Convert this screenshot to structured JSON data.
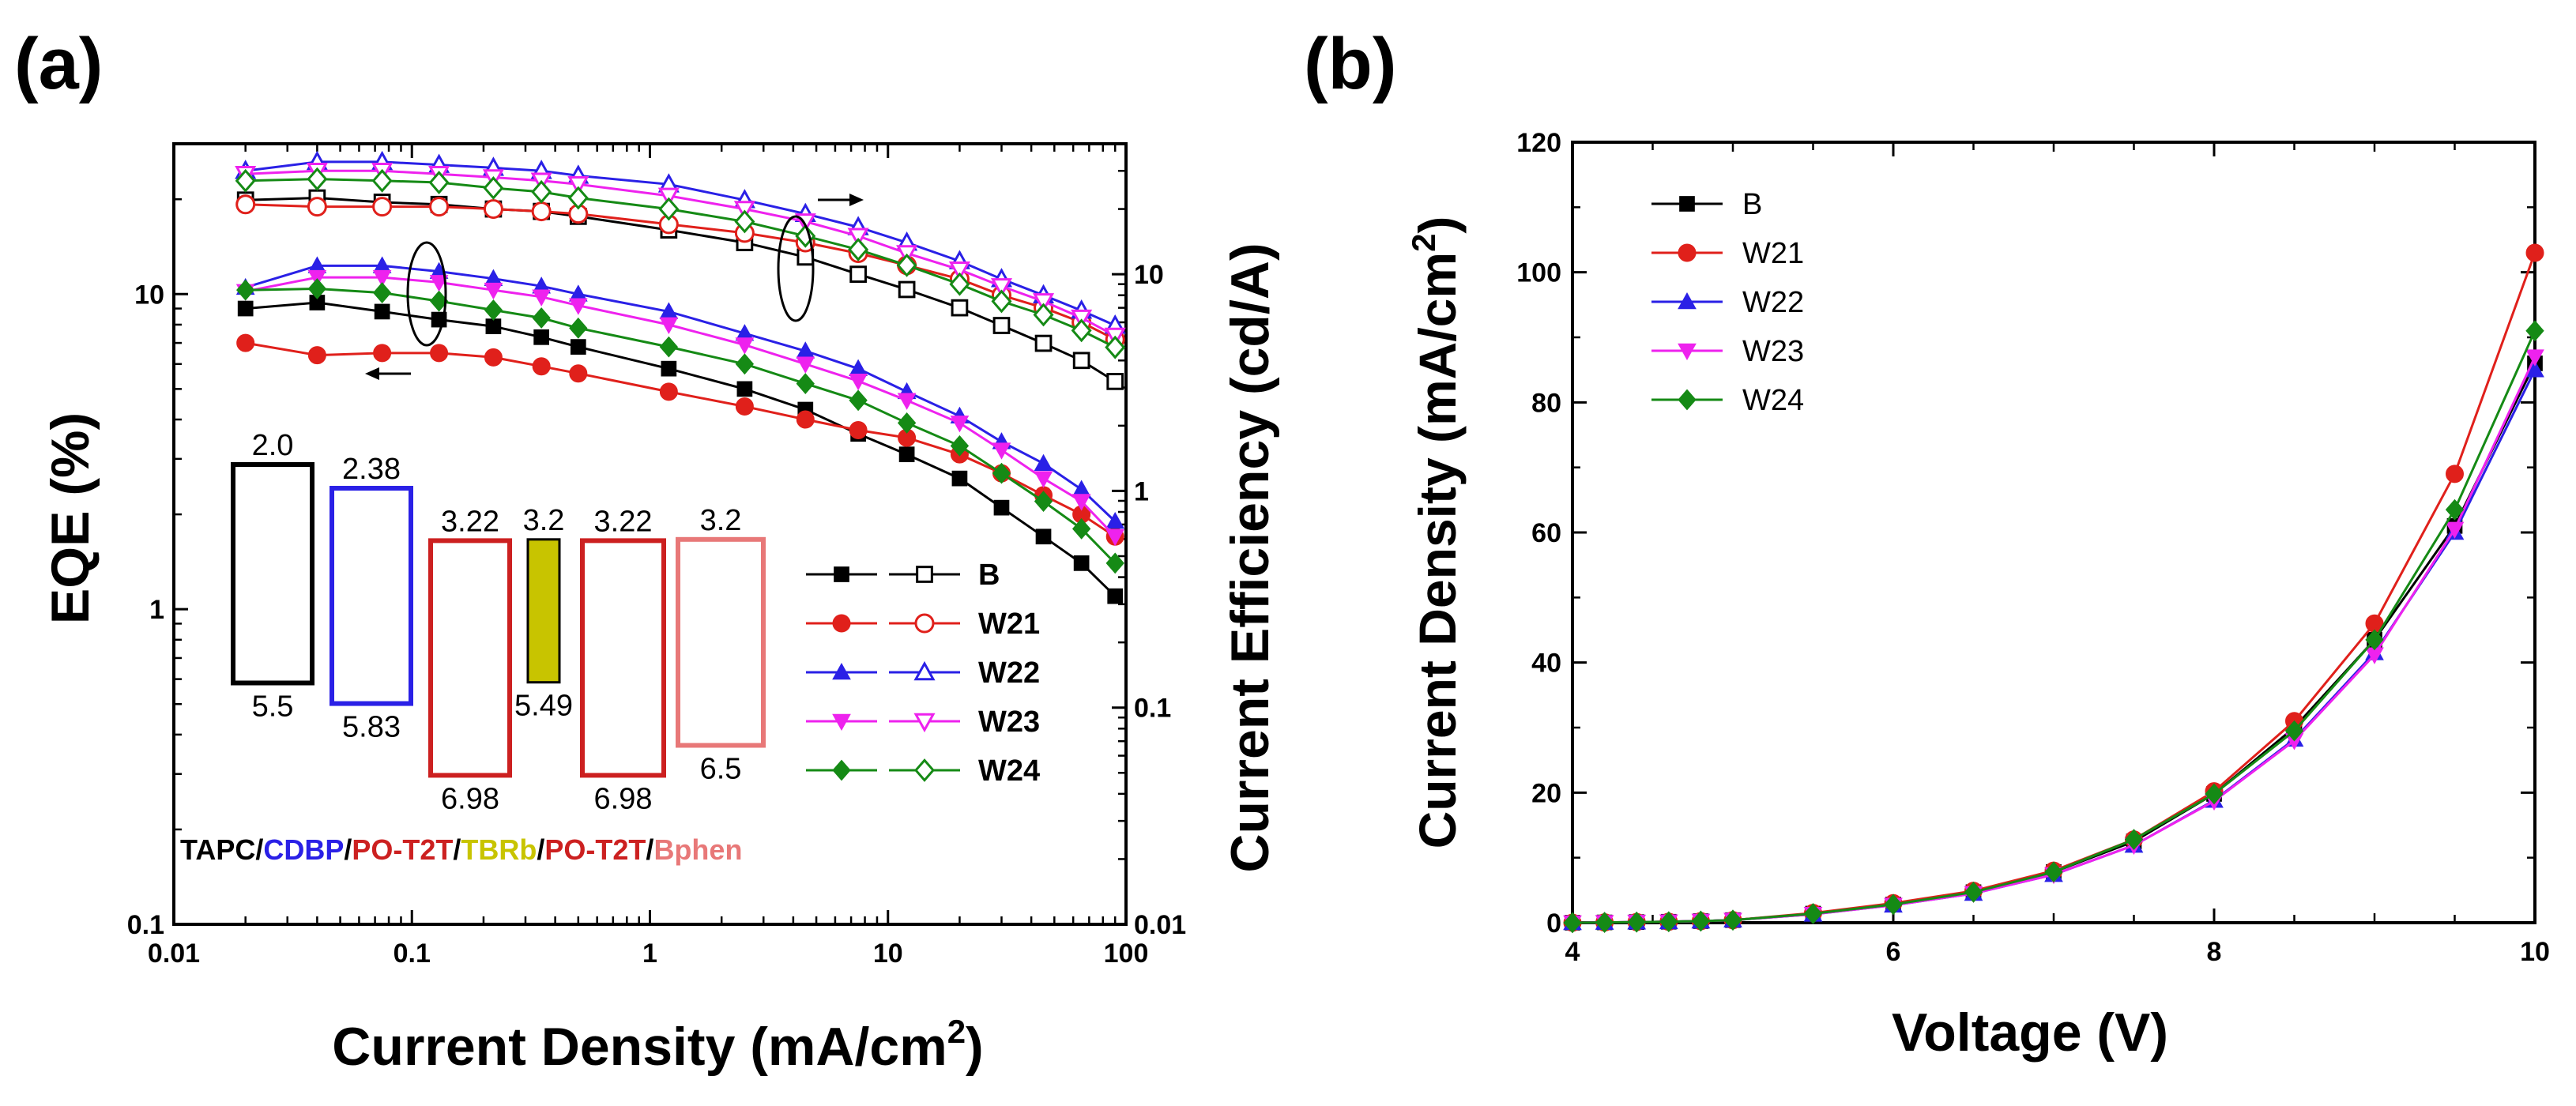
{
  "chart_data": [
    {
      "panel_label": "(a)",
      "type": "line",
      "x_scale": "log",
      "y_scale": "log",
      "xlabel_main": "Current Density (mA/cm",
      "xlabel_sup": "2",
      "xlabel_end": ")",
      "ylabel_left": "EQE (%)",
      "ylabel_right": "Current Efficiency (cd/A)",
      "xlim": [
        0.01,
        100
      ],
      "ylim_left": [
        0.1,
        30
      ],
      "ylim_right": [
        0.01,
        40
      ],
      "x_ticks": [
        0.01,
        0.1,
        1,
        10,
        100
      ],
      "x_tick_labels": [
        "0.01",
        "0.1",
        "1",
        "10",
        "100"
      ],
      "y_left_ticks": [
        0.1,
        1,
        10
      ],
      "y_left_tick_labels": [
        "0.1",
        "1",
        "10"
      ],
      "y_right_ticks": [
        0.01,
        0.1,
        1,
        10
      ],
      "y_right_tick_labels": [
        "0.01",
        "0.1",
        "1",
        "10"
      ],
      "x": [
        0.02,
        0.04,
        0.075,
        0.13,
        0.22,
        0.35,
        0.5,
        1.2,
        2.5,
        4.5,
        7.5,
        12,
        20,
        30,
        45,
        65,
        90
      ],
      "series": [
        {
          "name": "B",
          "color": "#000000",
          "eqe": [
            9.0,
            9.4,
            8.8,
            8.3,
            7.9,
            7.3,
            6.8,
            5.8,
            5.0,
            4.3,
            3.6,
            3.1,
            2.6,
            2.1,
            1.7,
            1.4,
            1.1
          ],
          "ce": [
            22,
            22.5,
            21.5,
            21,
            20,
            19.5,
            18.5,
            16,
            14,
            12,
            10,
            8.5,
            7,
            5.8,
            4.8,
            4,
            3.2
          ]
        },
        {
          "name": "W21",
          "color": "#e0201b",
          "eqe": [
            7.0,
            6.4,
            6.5,
            6.5,
            6.3,
            5.9,
            5.6,
            4.9,
            4.4,
            4.0,
            3.7,
            3.5,
            3.1,
            2.7,
            2.3,
            2.0,
            1.7
          ],
          "ce": [
            21,
            20.5,
            20.5,
            20.5,
            20,
            19.5,
            19,
            17,
            15.5,
            14,
            12.5,
            11,
            9.5,
            8,
            7,
            6,
            5
          ]
        },
        {
          "name": "W22",
          "color": "#2a20e6",
          "eqe": [
            10.5,
            12.3,
            12.3,
            11.8,
            11.2,
            10.6,
            10.0,
            8.8,
            7.5,
            6.6,
            5.8,
            4.9,
            4.1,
            3.4,
            2.9,
            2.4,
            1.9
          ],
          "ce": [
            30,
            33,
            33,
            32,
            31,
            30,
            28.5,
            26,
            22,
            19,
            16.5,
            14,
            11.5,
            9.5,
            8,
            6.8,
            5.8
          ]
        },
        {
          "name": "W23",
          "color": "#ee22ee",
          "eqe": [
            10.2,
            11.3,
            11.3,
            10.9,
            10.3,
            9.8,
            9.2,
            8.0,
            6.9,
            6.0,
            5.3,
            4.6,
            3.9,
            3.2,
            2.6,
            2.2,
            1.7
          ],
          "ce": [
            29,
            30,
            30,
            29,
            28,
            27,
            26,
            23,
            20,
            17.5,
            15,
            12.5,
            10.5,
            8.8,
            7.5,
            6.3,
            5.2
          ]
        },
        {
          "name": "W24",
          "color": "#158a15",
          "eqe": [
            10.3,
            10.4,
            10.1,
            9.5,
            8.9,
            8.4,
            7.8,
            6.8,
            6.0,
            5.2,
            4.6,
            3.9,
            3.3,
            2.7,
            2.2,
            1.8,
            1.4
          ],
          "ce": [
            27,
            27.5,
            27,
            26.5,
            25,
            24,
            22.5,
            20,
            17.5,
            15,
            13,
            11,
            9,
            7.5,
            6.5,
            5.5,
            4.6
          ]
        }
      ],
      "annotations": {
        "left_arrow_note": "filled symbols → EQE (left axis)",
        "right_arrow_note": "open symbols → Current Efficiency (right axis)"
      },
      "energy_diagram": {
        "levels": [
          {
            "material": "TAPC",
            "color": "#000000",
            "lumo": "2.0",
            "homo": "5.5"
          },
          {
            "material": "CDBP",
            "color": "#2a20e6",
            "lumo": "2.38",
            "homo": "5.83"
          },
          {
            "material": "PO-T2T",
            "color": "#cc2020",
            "lumo": "3.22",
            "homo": "6.98"
          },
          {
            "material": "TBRb",
            "color": "#000000",
            "fill": "#c8c400",
            "lumo": "3.2",
            "homo": "5.49"
          },
          {
            "material": "PO-T2T",
            "color": "#cc2020",
            "lumo": "3.22",
            "homo": "6.98"
          },
          {
            "material": "Bphen",
            "color": "#e87878",
            "lumo": "3.2",
            "homo": "6.5"
          }
        ],
        "stack_label": [
          {
            "text": "TAPC",
            "color": "#000000"
          },
          {
            "text": "/",
            "color": "#000000"
          },
          {
            "text": "CDBP",
            "color": "#2a20e6"
          },
          {
            "text": "/",
            "color": "#000000"
          },
          {
            "text": "PO-T2T",
            "color": "#cc2020"
          },
          {
            "text": "/",
            "color": "#000000"
          },
          {
            "text": "TBRb",
            "color": "#c8c400"
          },
          {
            "text": "/",
            "color": "#000000"
          },
          {
            "text": "PO-T2T",
            "color": "#cc2020"
          },
          {
            "text": "/",
            "color": "#000000"
          },
          {
            "text": "Bphen",
            "color": "#e87878"
          }
        ]
      }
    },
    {
      "panel_label": "(b)",
      "type": "line",
      "xlabel": "Voltage (V)",
      "ylabel_main": "Current Density (mA/cm",
      "ylabel_sup": "2",
      "ylabel_end": ")",
      "xlim": [
        4,
        10
      ],
      "ylim": [
        0,
        120
      ],
      "x_ticks": [
        4,
        6,
        8,
        10
      ],
      "x_tick_labels": [
        "4",
        "6",
        "8",
        "10"
      ],
      "y_ticks": [
        0,
        20,
        40,
        60,
        80,
        100,
        120
      ],
      "y_tick_labels": [
        "0",
        "20",
        "40",
        "60",
        "80",
        "100",
        "120"
      ],
      "x": [
        4,
        4.2,
        4.4,
        4.6,
        4.8,
        5,
        5.5,
        6,
        6.5,
        7,
        7.5,
        8,
        8.5,
        9,
        9.5,
        10
      ],
      "series": [
        {
          "name": "B",
          "color": "#000000",
          "marker": "square",
          "values": [
            0,
            0.05,
            0.1,
            0.15,
            0.25,
            0.4,
            1.4,
            2.8,
            4.7,
            7.8,
            12.5,
            19.8,
            30,
            43.5,
            61,
            86
          ]
        },
        {
          "name": "W21",
          "color": "#e0201b",
          "marker": "circle",
          "values": [
            0,
            0.05,
            0.1,
            0.15,
            0.25,
            0.4,
            1.5,
            3.0,
            4.9,
            8.0,
            12.8,
            20.2,
            31,
            46,
            69,
            103
          ]
        },
        {
          "name": "W22",
          "color": "#2a20e6",
          "marker": "triangle-up",
          "values": [
            0,
            0.05,
            0.1,
            0.15,
            0.25,
            0.4,
            1.3,
            2.7,
            4.5,
            7.4,
            11.9,
            18.8,
            28.2,
            41.5,
            60,
            85
          ]
        },
        {
          "name": "W23",
          "color": "#ee22ee",
          "marker": "triangle-down",
          "values": [
            0,
            0.05,
            0.1,
            0.15,
            0.25,
            0.4,
            1.3,
            2.7,
            4.5,
            7.4,
            11.9,
            18.7,
            28,
            41.2,
            60.5,
            87
          ]
        },
        {
          "name": "W24",
          "color": "#158a15",
          "marker": "diamond",
          "values": [
            0,
            0.05,
            0.1,
            0.15,
            0.25,
            0.4,
            1.4,
            2.8,
            4.7,
            7.8,
            12.8,
            19.8,
            29.5,
            43.5,
            63.5,
            91
          ]
        }
      ]
    }
  ]
}
